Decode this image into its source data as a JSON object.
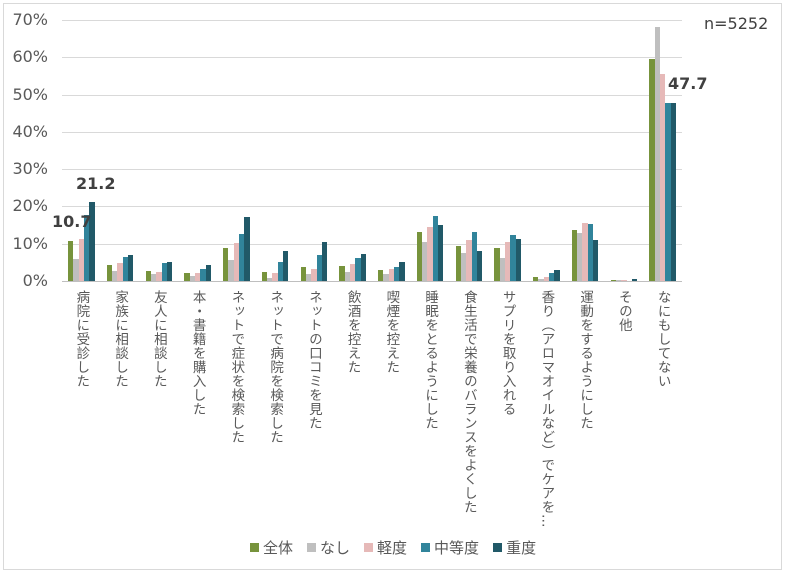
{
  "sample_size": "n=5252",
  "chart_data": {
    "type": "bar",
    "title": "",
    "xlabel": "",
    "ylabel": "",
    "ylim": [
      0,
      70
    ],
    "yticks": [
      "0%",
      "10%",
      "20%",
      "30%",
      "40%",
      "50%",
      "60%",
      "70%"
    ],
    "grid": true,
    "legend_position": "bottom",
    "categories": [
      "病院に受診した",
      "家族に相談した",
      "友人に相談した",
      "本・書籍を購入した",
      "ネットで症状を検索した",
      "ネットで病院を検索した",
      "ネットの口コミを見た",
      "飲酒を控えた",
      "喫煙を控えた",
      "睡眠をとるようにした",
      "食生活で栄養のバランスをよくした",
      "サプリを取り入れる",
      "香り（アロマオイルなど）でケアを…",
      "運動をするようにした",
      "その他",
      "なにもしてない"
    ],
    "series": [
      {
        "name": "全体",
        "color": "#77933c",
        "values": [
          10.7,
          4.3,
          2.7,
          2.2,
          8.9,
          2.4,
          3.7,
          4.0,
          2.9,
          13.1,
          9.4,
          8.9,
          1.1,
          13.7,
          0.3,
          59.5
        ]
      },
      {
        "name": "なし",
        "color": "#bfbfbf",
        "values": [
          5.9,
          2.7,
          1.9,
          1.4,
          5.6,
          0.8,
          1.8,
          2.4,
          1.8,
          10.4,
          7.5,
          6.1,
          0.5,
          12.9,
          0.2,
          68.1
        ]
      },
      {
        "name": "軽度",
        "color": "#e6b9b8",
        "values": [
          11.3,
          4.8,
          2.4,
          2.2,
          10.1,
          2.1,
          3.2,
          4.6,
          3.2,
          14.5,
          11.0,
          10.4,
          1.1,
          15.5,
          0.3,
          55.5
        ]
      },
      {
        "name": "中等度",
        "color": "#31849b",
        "values": [
          17.8,
          6.4,
          4.8,
          3.3,
          12.6,
          5.1,
          6.9,
          6.1,
          3.8,
          17.4,
          13.1,
          12.3,
          2.1,
          15.3,
          0.0,
          47.7
        ]
      },
      {
        "name": "重度",
        "color": "#215968",
        "values": [
          21.2,
          6.9,
          5.1,
          4.3,
          17.2,
          8.0,
          10.4,
          7.2,
          5.1,
          15.0,
          8.0,
          11.3,
          2.9,
          11.0,
          0.5,
          47.7
        ]
      }
    ],
    "annotations": [
      {
        "text": "10.7",
        "category": "病院に受診した",
        "series": "全体"
      },
      {
        "text": "21.2",
        "category": "病院に受診した",
        "series": "重度"
      },
      {
        "text": "47.7",
        "category": "なにもしてない",
        "series": "重度"
      }
    ]
  }
}
